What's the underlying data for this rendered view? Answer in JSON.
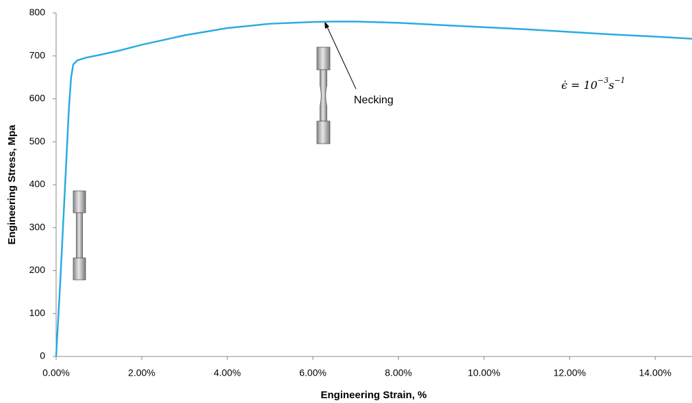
{
  "chart_data": {
    "type": "line",
    "x_label": "Engineering Strain, %",
    "y_label": "Engineering Stress, Mpa",
    "x": [
      0,
      0.1,
      0.2,
      0.3,
      0.35,
      0.4,
      0.5,
      0.7,
      1,
      1.5,
      2,
      3,
      4,
      5,
      6,
      6.5,
      7,
      8,
      9,
      10,
      11,
      12,
      13,
      14,
      14.86
    ],
    "series": [
      {
        "name": "Engineering stress",
        "color": "#29abe2",
        "values": [
          0,
          180,
          380,
          580,
          650,
          680,
          690,
          696,
          702,
          713,
          726,
          748,
          765,
          775,
          779,
          780,
          780,
          777,
          772,
          767,
          762,
          756,
          750,
          745,
          740
        ]
      }
    ],
    "xlim": [
      0,
      14.86
    ],
    "xticks": [
      {
        "value": 0,
        "label": "0.00%"
      },
      {
        "value": 2,
        "label": "2.00%"
      },
      {
        "value": 4,
        "label": "4.00%"
      },
      {
        "value": 6,
        "label": "6.00%"
      },
      {
        "value": 8,
        "label": "8.00%"
      },
      {
        "value": 10,
        "label": "10.00%"
      },
      {
        "value": 12,
        "label": "12.00%"
      },
      {
        "value": 14,
        "label": "14.00%"
      }
    ],
    "ylim": [
      0,
      800
    ],
    "yticks": [
      0,
      100,
      200,
      300,
      400,
      500,
      600,
      700,
      800
    ],
    "grid": false,
    "annotation": "Necking",
    "formula": [
      "ϵ̇ = 10",
      "−3",
      "s",
      "−1"
    ]
  }
}
